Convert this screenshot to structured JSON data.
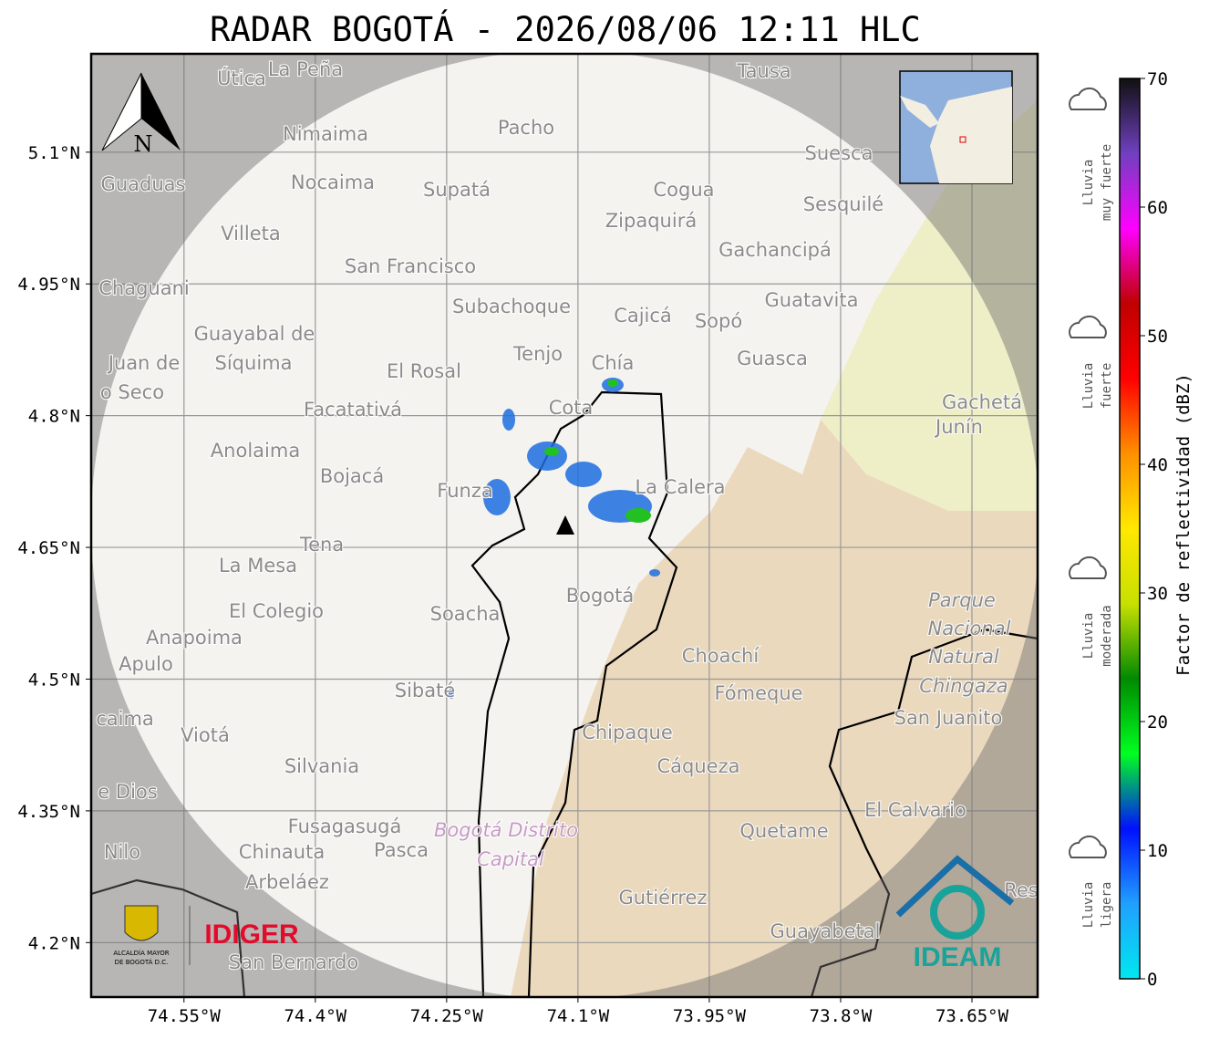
{
  "header": {
    "title": "RADAR BOGOTÁ - 2026/08/06 12:11 HLC"
  },
  "map": {
    "north_label": "N",
    "lon_range": [
      -74.656,
      -73.575
    ],
    "lat_range": [
      4.138,
      5.212
    ],
    "lat_ticks": [
      {
        "value": 5.1,
        "label": "5.1°N"
      },
      {
        "value": 4.95,
        "label": "4.95°N"
      },
      {
        "value": 4.8,
        "label": "4.8°N"
      },
      {
        "value": 4.65,
        "label": "4.65°N"
      },
      {
        "value": 4.5,
        "label": "4.5°N"
      },
      {
        "value": 4.35,
        "label": "4.35°N"
      },
      {
        "value": 4.2,
        "label": "4.2°N"
      }
    ],
    "lon_ticks": [
      {
        "value": -74.55,
        "label": "74.55°W"
      },
      {
        "value": -74.4,
        "label": "74.4°W"
      },
      {
        "value": -74.25,
        "label": "74.25°W"
      },
      {
        "value": -74.1,
        "label": "74.1°W"
      },
      {
        "value": -73.95,
        "label": "73.95°W"
      },
      {
        "value": -73.8,
        "label": "73.8°W"
      },
      {
        "value": -73.65,
        "label": "73.65°W"
      }
    ],
    "places": [
      "Útica",
      "La Peña",
      "Tausa",
      "Pacho",
      "Nimaima",
      "Suesca",
      "Guaduas",
      "Nocaima",
      "Supatá",
      "Cogua",
      "Sesquilé",
      "Zipaquirá",
      "Villeta",
      "Gachancipá",
      "San Francisco",
      "Chaguani",
      "Guatavita",
      "Subachoque",
      "Cajicá",
      "Sopó",
      "Guayabal de",
      "Síquima",
      "Juan de",
      "o Seco",
      "Tenjo",
      "Guasca",
      "El Rosal",
      "Chía",
      "Facatativá",
      "Cota",
      "Gachetá",
      "Junín",
      "Anolaima",
      "Bojacá",
      "Funza",
      "La Calera",
      "Tena",
      "La Mesa",
      "Bogotá",
      "El Colegio",
      "Soacha",
      "Anapoima",
      "Apulo",
      "Choachí",
      "Fómeque",
      "Sibaté",
      "San Juanito",
      "caima",
      "Viotá",
      "Chipaque",
      "Silvania",
      "Cáqueza",
      "e Dios",
      "El Calvario",
      "Fusagasugá",
      "Quetame",
      "Chinauta",
      "Pasca",
      "Nilo",
      "Arbeláez",
      "Gutiérrez",
      "Guayabetal",
      "San Bernardo",
      "Res"
    ],
    "park": [
      "Parque",
      "Nacional",
      "Natural",
      "Chingaza"
    ],
    "district": [
      "Bogotá Distrito",
      "Capital"
    ]
  },
  "colorbar": {
    "label": "Factor de reflectividad (dBZ)",
    "lim": [
      0,
      70
    ],
    "ticks": [
      0,
      10,
      20,
      30,
      40,
      50,
      60,
      70
    ],
    "colormap": [
      "#00e8f0",
      "#20a0ff",
      "#0010ff",
      "#00ff20",
      "#008a00",
      "#c8e000",
      "#ffe800",
      "#ff9000",
      "#ff0000",
      "#c00000",
      "#ff00ff",
      "#7040c0",
      "#101010"
    ],
    "categories": [
      [
        "Lluvia",
        "muy fuerte"
      ],
      [
        "Lluvia",
        "fuerte"
      ],
      [
        "Lluvia",
        "moderada"
      ],
      [
        "Lluvia",
        "ligera"
      ]
    ]
  },
  "logos": {
    "alcaldia": [
      "ALCALDÍA MAYOR",
      "DE BOGOTÁ D.C."
    ],
    "idiger": "IDIGER",
    "ideam": "IDEAM"
  }
}
